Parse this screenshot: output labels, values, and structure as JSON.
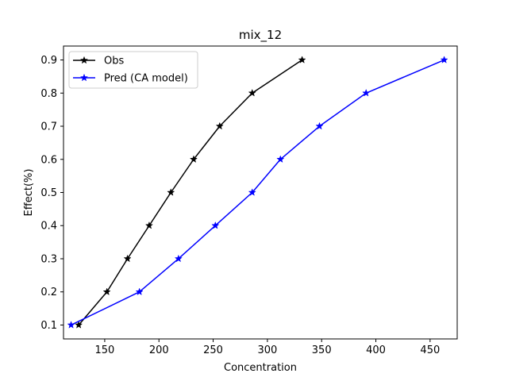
{
  "chart_data": {
    "type": "line",
    "title": "mix_12",
    "xlabel": "Concentration",
    "ylabel": "Effect(%)",
    "xlim": [
      112,
      475
    ],
    "ylim": [
      0.058,
      0.942
    ],
    "xticks": [
      150,
      200,
      250,
      300,
      350,
      400,
      450
    ],
    "yticks": [
      0.1,
      0.2,
      0.3,
      0.4,
      0.5,
      0.6,
      0.7,
      0.8,
      0.9
    ],
    "grid": false,
    "legend_position": "upper-left",
    "series": [
      {
        "name": "Obs",
        "color": "#000000",
        "marker": "star",
        "x": [
          126,
          152,
          171,
          191,
          211,
          232,
          256,
          286,
          332
        ],
        "y": [
          0.1,
          0.2,
          0.3,
          0.4,
          0.5,
          0.6,
          0.7,
          0.8,
          0.9
        ]
      },
      {
        "name": "Pred (CA model)",
        "color": "#0000ff",
        "marker": "star",
        "x": [
          119,
          182,
          218,
          252,
          286,
          312,
          348,
          391,
          463
        ],
        "y": [
          0.1,
          0.2,
          0.3,
          0.4,
          0.5,
          0.6,
          0.7,
          0.8,
          0.9
        ]
      }
    ]
  }
}
